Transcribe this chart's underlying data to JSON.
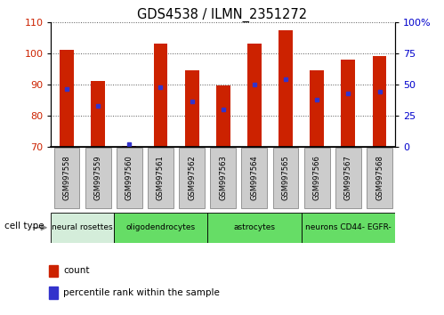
{
  "title": "GDS4538 / ILMN_2351272",
  "samples": [
    "GSM997558",
    "GSM997559",
    "GSM997560",
    "GSM997561",
    "GSM997562",
    "GSM997563",
    "GSM997564",
    "GSM997565",
    "GSM997566",
    "GSM997567",
    "GSM997568"
  ],
  "bar_heights": [
    101.0,
    91.0,
    70.2,
    103.0,
    94.5,
    89.5,
    103.0,
    107.5,
    94.5,
    98.0,
    99.0
  ],
  "blue_dots": [
    88.5,
    83.0,
    70.7,
    89.0,
    84.5,
    82.0,
    90.0,
    91.5,
    85.0,
    87.0,
    87.5
  ],
  "ylim_left": [
    70,
    110
  ],
  "ylim_right": [
    0,
    100
  ],
  "left_ticks": [
    70,
    80,
    90,
    100,
    110
  ],
  "right_ticks": [
    0,
    25,
    50,
    75,
    100
  ],
  "right_tick_labels": [
    "0",
    "25",
    "50",
    "75",
    "100%"
  ],
  "bar_color": "#cc2200",
  "blue_color": "#3333cc",
  "bar_bottom": 70,
  "cell_type_groups": [
    {
      "label": "neural rosettes",
      "start": 0,
      "end": 2,
      "color": "#d4edda"
    },
    {
      "label": "oligodendrocytes",
      "start": 2,
      "end": 5,
      "color": "#66dd66"
    },
    {
      "label": "astrocytes",
      "start": 5,
      "end": 8,
      "color": "#66dd66"
    },
    {
      "label": "neurons CD44- EGFR-",
      "start": 8,
      "end": 11,
      "color": "#66dd66"
    }
  ],
  "tick_label_color_left": "#cc2200",
  "tick_label_color_right": "#0000cc",
  "grid_color": "#555555",
  "sample_box_color": "#cccccc",
  "sample_box_edge": "#888888"
}
